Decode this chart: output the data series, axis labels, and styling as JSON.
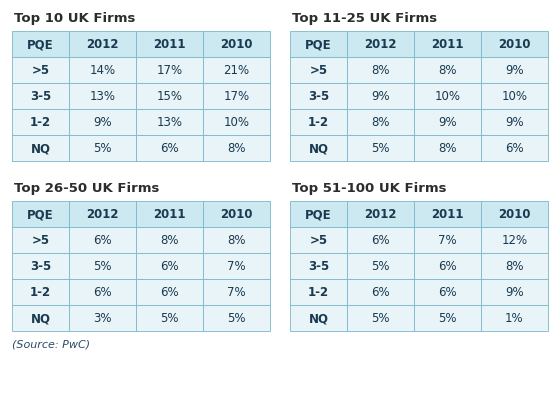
{
  "tables": [
    {
      "title": "Top 10 UK Firms",
      "col": 0,
      "row": 0,
      "headers": [
        "PQE",
        "2012",
        "2011",
        "2010"
      ],
      "rows": [
        [
          ">5",
          "14%",
          "17%",
          "21%"
        ],
        [
          "3-5",
          "13%",
          "15%",
          "17%"
        ],
        [
          "1-2",
          "9%",
          "13%",
          "10%"
        ],
        [
          "NQ",
          "5%",
          "6%",
          "8%"
        ]
      ]
    },
    {
      "title": "Top 11-25 UK Firms",
      "col": 1,
      "row": 0,
      "headers": [
        "PQE",
        "2012",
        "2011",
        "2010"
      ],
      "rows": [
        [
          ">5",
          "8%",
          "8%",
          "9%"
        ],
        [
          "3-5",
          "9%",
          "10%",
          "10%"
        ],
        [
          "1-2",
          "8%",
          "9%",
          "9%"
        ],
        [
          "NQ",
          "5%",
          "8%",
          "6%"
        ]
      ]
    },
    {
      "title": "Top 26-50 UK Firms",
      "col": 0,
      "row": 1,
      "headers": [
        "PQE",
        "2012",
        "2011",
        "2010"
      ],
      "rows": [
        [
          ">5",
          "6%",
          "8%",
          "8%"
        ],
        [
          "3-5",
          "5%",
          "6%",
          "7%"
        ],
        [
          "1-2",
          "6%",
          "6%",
          "7%"
        ],
        [
          "NQ",
          "3%",
          "5%",
          "5%"
        ]
      ]
    },
    {
      "title": "Top 51-100 UK Firms",
      "col": 1,
      "row": 1,
      "headers": [
        "PQE",
        "2012",
        "2011",
        "2010"
      ],
      "rows": [
        [
          ">5",
          "6%",
          "7%",
          "12%"
        ],
        [
          "3-5",
          "5%",
          "6%",
          "8%"
        ],
        [
          "1-2",
          "6%",
          "6%",
          "9%"
        ],
        [
          "NQ",
          "5%",
          "5%",
          "1%"
        ]
      ]
    }
  ],
  "source_text": "(Source: PwC)",
  "header_bg": "#cce8f0",
  "row_bg": "#e8f4f8",
  "border_color": "#7ab8cc",
  "title_color": "#2c2c2c",
  "header_text_color": "#1a3a50",
  "cell_text_color": "#1a3a50",
  "source_color": "#2c4a6a",
  "title_fontsize": 9.5,
  "header_fontsize": 8.5,
  "cell_fontsize": 8.5,
  "source_fontsize": 8.0
}
